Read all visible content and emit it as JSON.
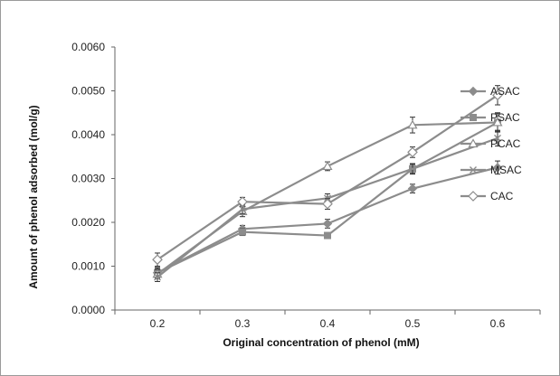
{
  "chart_data": {
    "type": "line",
    "title": "",
    "xlabel": "Original concentration of phenol (mM)",
    "ylabel": "Amount of phenol adsorbed (mol/g)",
    "x_categories": [
      "0.2",
      "0.3",
      "0.4",
      "0.5",
      "0.6"
    ],
    "ylim": [
      0,
      0.006
    ],
    "y_ticks": [
      "0.0000",
      "0.0010",
      "0.0020",
      "0.0030",
      "0.0040",
      "0.0050",
      "0.0060"
    ],
    "grid": false,
    "legend_position": "right",
    "x_points": [
      0.2,
      0.3,
      0.4,
      0.5,
      0.6
    ],
    "series": [
      {
        "name": "ASAC",
        "marker": "diamond-filled",
        "values": [
          0.00085,
          0.00185,
          0.00197,
          0.00277,
          0.00325
        ],
        "errors": [
          0.00012,
          8e-05,
          0.0001,
          0.0001,
          0.00015
        ]
      },
      {
        "name": "PSAC",
        "marker": "square-filled",
        "values": [
          0.00085,
          0.00178,
          0.0017,
          0.00322,
          0.00428
        ],
        "errors": [
          0.0001,
          8e-05,
          5e-05,
          0.00012,
          0.00022
        ]
      },
      {
        "name": "PCAC",
        "marker": "triangle-open",
        "values": [
          0.00082,
          0.00225,
          0.00328,
          0.00422,
          0.00428
        ],
        "errors": [
          0.0001,
          0.00012,
          0.0001,
          0.00018,
          0.0002
        ]
      },
      {
        "name": "MSAC",
        "marker": "x",
        "values": [
          0.00075,
          0.0023,
          0.00255,
          0.00322,
          0.00392
        ],
        "errors": [
          0.0001,
          0.0001,
          0.0001,
          0.0001,
          0.00018
        ]
      },
      {
        "name": "CAC",
        "marker": "diamond-open",
        "values": [
          0.00115,
          0.00247,
          0.00242,
          0.0036,
          0.0049
        ],
        "errors": [
          0.00015,
          0.0001,
          0.00012,
          0.00012,
          0.00022
        ]
      }
    ],
    "line_color": "#8c8c8c",
    "marker_color": "#8c8c8c",
    "error_bar_color": "#333333",
    "axis_color": "#666666"
  }
}
